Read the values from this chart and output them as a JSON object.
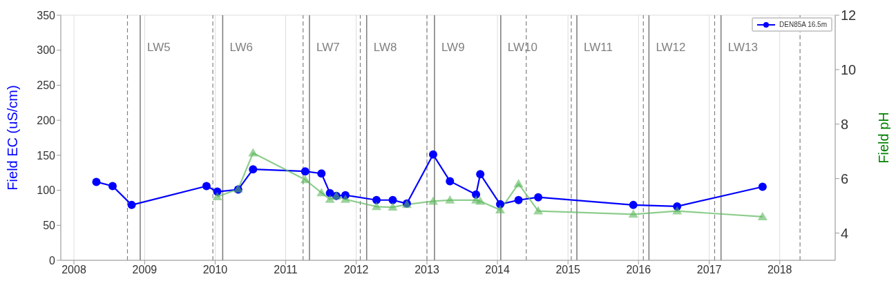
{
  "chart_data": {
    "type": "line",
    "ylabel": "Field EC (uS/cm)",
    "y2label": "Field pH",
    "x": [
      "2008-04-26",
      "2008-07-19",
      "2008-10-26",
      "2009-11-17",
      "2010-01-12",
      "2010-04-30",
      "2010-07-16",
      "2011-04-12",
      "2011-07-05",
      "2011-08-18",
      "2011-09-20",
      "2011-11-06",
      "2012-04-15",
      "2012-07-08",
      "2012-09-19",
      "2013-02-02",
      "2013-04-30",
      "2013-09-12",
      "2013-10-04",
      "2014-01-15",
      "2014-04-20",
      "2014-07-31",
      "2015-12-05",
      "2016-07-19",
      "2017-10-04"
    ],
    "series": [
      {
        "name": "DEN85A 16.5m",
        "color": "#0000ff",
        "marker": "circle",
        "values": [
          112,
          106,
          79,
          106,
          98,
          101,
          130,
          127,
          124,
          96,
          92,
          93,
          86,
          86,
          81,
          151,
          113,
          94,
          123,
          80,
          86,
          90,
          79,
          77,
          105
        ]
      },
      {
        "color": "#5cb85c",
        "marker": "triangle",
        "axis": "y2",
        "values": [
          null,
          null,
          null,
          null,
          5.33,
          5.62,
          6.94,
          5.96,
          5.48,
          5.24,
          5.36,
          5.24,
          4.97,
          4.95,
          5.05,
          5.17,
          5.21,
          5.21,
          5.17,
          4.85,
          5.81,
          4.81,
          4.69,
          4.81,
          4.6
        ]
      }
    ],
    "xlim": [
      "2007-10-25",
      "2018-10-15"
    ],
    "xticks": [
      {
        "value": "2008",
        "label": "2008"
      },
      {
        "value": "2009",
        "label": "2009"
      },
      {
        "value": "2010",
        "label": "2010"
      },
      {
        "value": "2011",
        "label": "2011"
      },
      {
        "value": "2012",
        "label": "2012"
      },
      {
        "value": "2013",
        "label": "2013"
      },
      {
        "value": "2014",
        "label": "2014"
      },
      {
        "value": "2015",
        "label": "2015"
      },
      {
        "value": "2016",
        "label": "2016"
      },
      {
        "value": "2017",
        "label": "2017"
      },
      {
        "value": "2018",
        "label": "2018"
      }
    ],
    "ylim": [
      0,
      350
    ],
    "yticks": [
      0,
      50,
      100,
      150,
      200,
      250,
      300,
      350
    ],
    "y2lim": [
      3,
      12
    ],
    "y2ticks": [
      4,
      6,
      8,
      10,
      12
    ],
    "ref_lines": [
      {
        "axis": "x",
        "value": "2008-10-04",
        "line_style": "dashed",
        "color": "#808080"
      },
      {
        "axis": "x",
        "value": "2009-12-20",
        "line_style": "dashed",
        "color": "#808080"
      },
      {
        "axis": "x",
        "value": "2011-04-01",
        "line_style": "dashed",
        "color": "#808080"
      },
      {
        "axis": "x",
        "value": "2012-01-22",
        "line_style": "dashed",
        "color": "#808080"
      },
      {
        "axis": "x",
        "value": "2013-01-01",
        "line_style": "dashed",
        "color": "#808080"
      },
      {
        "axis": "x",
        "value": "2014-05-30",
        "line_style": "dashed",
        "color": "#808080"
      },
      {
        "axis": "x",
        "value": "2015-01-18",
        "line_style": "dashed",
        "color": "#808080"
      },
      {
        "axis": "x",
        "value": "2016-01-26",
        "line_style": "dashed",
        "color": "#808080"
      },
      {
        "axis": "x",
        "value": "2017-01-29",
        "line_style": "dashed",
        "color": "#808080"
      },
      {
        "axis": "x",
        "value": "2018-04-16",
        "line_style": "dashed",
        "color": "#808080"
      },
      {
        "axis": "x",
        "value": "2008-12-09",
        "label": "LW5",
        "line_style": "solid",
        "color": "#808080"
      },
      {
        "axis": "x",
        "value": "2010-02-09",
        "label": "LW6",
        "line_style": "solid",
        "color": "#808080"
      },
      {
        "axis": "x",
        "value": "2011-05-04",
        "label": "LW7",
        "line_style": "solid",
        "color": "#808080"
      },
      {
        "axis": "x",
        "value": "2012-02-24",
        "label": "LW8",
        "line_style": "solid",
        "color": "#808080"
      },
      {
        "axis": "x",
        "value": "2013-02-09",
        "label": "LW9",
        "line_style": "solid",
        "color": "#808080"
      },
      {
        "axis": "x",
        "value": "2014-01-18",
        "label": "LW10",
        "line_style": "solid",
        "color": "#808080"
      },
      {
        "axis": "x",
        "value": "2015-02-16",
        "label": "LW11",
        "line_style": "solid",
        "color": "#808080"
      },
      {
        "axis": "x",
        "value": "2016-02-24",
        "label": "LW12",
        "line_style": "solid",
        "color": "#808080"
      },
      {
        "axis": "x",
        "value": "2017-03-03",
        "label": "LW13",
        "line_style": "solid",
        "color": "#808080"
      }
    ],
    "grid": true,
    "legend": "top right",
    "line_style": "solid"
  }
}
